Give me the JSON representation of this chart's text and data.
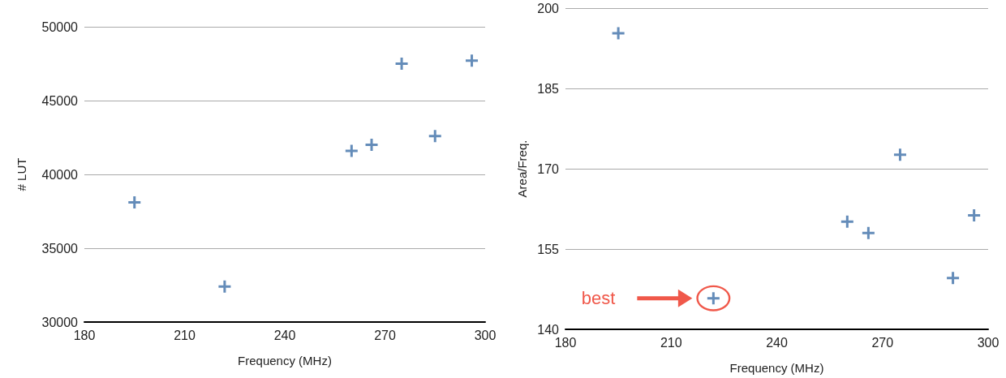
{
  "chart_data": [
    {
      "type": "scatter",
      "xlabel": "Frequency (MHz)",
      "ylabel": "# LUT",
      "marker": "cross",
      "grid": "y",
      "xlim": [
        180,
        300
      ],
      "xticks": [
        180,
        210,
        240,
        270,
        300
      ],
      "ylim": [
        30000,
        50000
      ],
      "yticks": [
        30000,
        35000,
        40000,
        45000,
        50000
      ],
      "series": [
        {
          "color": "#3d6fa8",
          "x": [
            195,
            222,
            260,
            266,
            275,
            285,
            296
          ],
          "values": [
            38100,
            32400,
            41600,
            42000,
            47500,
            42600,
            47700
          ]
        }
      ]
    },
    {
      "type": "scatter",
      "xlabel": "Frequency (MHz)",
      "ylabel": "Area/Freq.",
      "marker": "cross",
      "grid": "y",
      "xlim": [
        180,
        300
      ],
      "xticks": [
        180,
        210,
        240,
        270,
        300
      ],
      "ylim": [
        140,
        200
      ],
      "yticks": [
        140,
        155,
        170,
        185,
        200
      ],
      "annotations": [
        "best"
      ],
      "series": [
        {
          "color": "#3d6fa8",
          "x": [
            195,
            222,
            260,
            266,
            275,
            290,
            296
          ],
          "values": [
            195.3,
            145.8,
            160.1,
            158,
            172.6,
            149.6,
            161.3
          ]
        }
      ]
    }
  ]
}
